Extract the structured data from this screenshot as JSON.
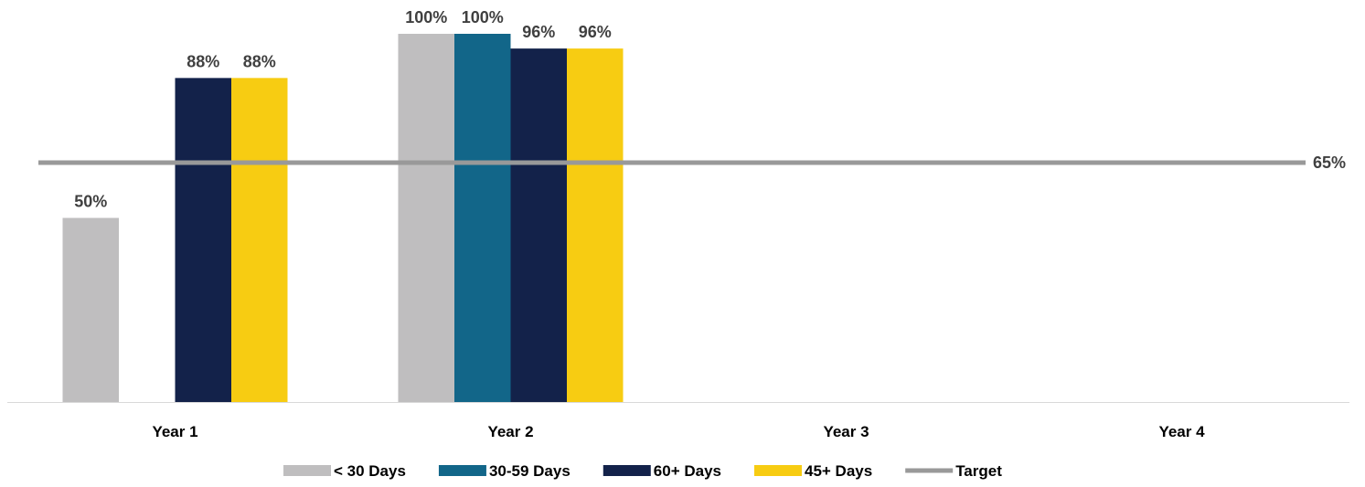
{
  "chart_data": {
    "type": "bar",
    "title": "",
    "xlabel": "",
    "ylabel": "",
    "ylim": [
      0,
      100
    ],
    "grid": false,
    "legend_position": "bottom",
    "categories": [
      "Year 1",
      "Year 2",
      "Year 3",
      "Year 4"
    ],
    "series": [
      {
        "name": "< 30 Days",
        "color": "#BFBEBF",
        "values": [
          50,
          100,
          null,
          null
        ],
        "labels": [
          "50%",
          "100%",
          "",
          ""
        ]
      },
      {
        "name": "30-59 Days",
        "color": "#126689",
        "values": [
          null,
          100,
          null,
          null
        ],
        "labels": [
          "",
          "100%",
          "",
          ""
        ]
      },
      {
        "name": "60+ Days",
        "color": "#13224A",
        "values": [
          88,
          96,
          null,
          null
        ],
        "labels": [
          "88%",
          "96%",
          "",
          ""
        ]
      },
      {
        "name": "45+ Days",
        "color": "#F7CC12",
        "values": [
          88,
          96,
          null,
          null
        ],
        "labels": [
          "88%",
          "96%",
          "",
          ""
        ]
      }
    ],
    "target": {
      "name": "Target",
      "value": 65,
      "label": "65%",
      "color": "#999999"
    }
  }
}
